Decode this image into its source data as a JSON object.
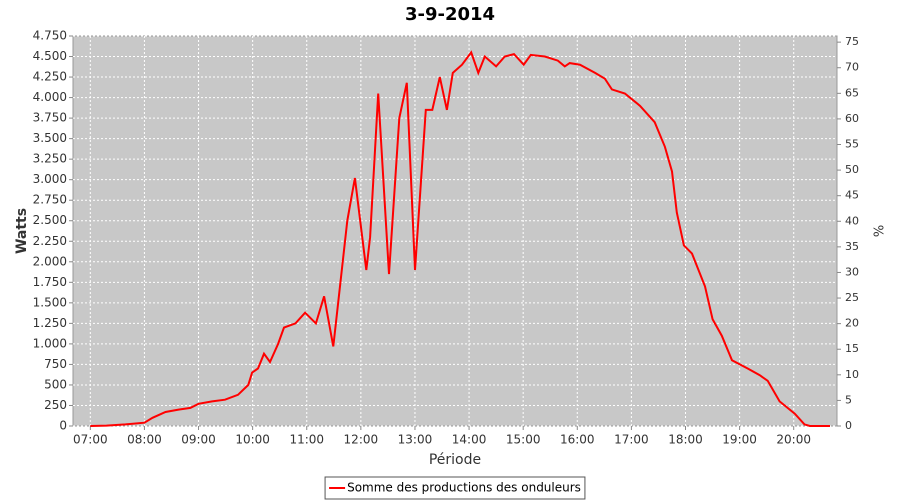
{
  "chart_data": {
    "type": "line",
    "title": "3-9-2014",
    "xlabel": "Période",
    "ylabel": "Watts",
    "y2label": "%",
    "xlim": [
      6.68,
      20.8
    ],
    "xticks": [
      {
        "value": 7,
        "label": "07:00"
      },
      {
        "value": 8,
        "label": "08:00"
      },
      {
        "value": 9,
        "label": "09:00"
      },
      {
        "value": 10,
        "label": "10:00"
      },
      {
        "value": 11,
        "label": "11:00"
      },
      {
        "value": 12,
        "label": "12:00"
      },
      {
        "value": 13,
        "label": "13:00"
      },
      {
        "value": 14,
        "label": "14:00"
      },
      {
        "value": 15,
        "label": "15:00"
      },
      {
        "value": 16,
        "label": "16:00"
      },
      {
        "value": 17,
        "label": "17:00"
      },
      {
        "value": 18,
        "label": "18:00"
      },
      {
        "value": 19,
        "label": "19:00"
      },
      {
        "value": 20,
        "label": "20:00"
      }
    ],
    "ylim": [
      0,
      4750
    ],
    "yticks": [
      0,
      250,
      500,
      750,
      {
        "value": 1000,
        "label": "1.000"
      },
      {
        "value": 1250,
        "label": "1.250"
      },
      {
        "value": 1500,
        "label": "1.500"
      },
      {
        "value": 1750,
        "label": "1.750"
      },
      {
        "value": 2000,
        "label": "2.000"
      },
      {
        "value": 2250,
        "label": "2.250"
      },
      {
        "value": 2500,
        "label": "2.500"
      },
      {
        "value": 2750,
        "label": "2.750"
      },
      {
        "value": 3000,
        "label": "3.000"
      },
      {
        "value": 3250,
        "label": "3.250"
      },
      {
        "value": 3500,
        "label": "3.500"
      },
      {
        "value": 3750,
        "label": "3.750"
      },
      {
        "value": 4000,
        "label": "4.000"
      },
      {
        "value": 4250,
        "label": "4.250"
      },
      {
        "value": 4500,
        "label": "4.500"
      },
      {
        "value": 4750,
        "label": "4.750"
      }
    ],
    "y2lim": [
      0,
      76.2
    ],
    "y2ticks": [
      0,
      5,
      10,
      15,
      20,
      25,
      30,
      35,
      40,
      45,
      50,
      55,
      60,
      65,
      70,
      75
    ],
    "grid": true,
    "legend": "bottom",
    "x": [
      7.0,
      7.3,
      7.65,
      8.0,
      8.15,
      8.39,
      8.63,
      8.85,
      9.0,
      9.25,
      9.49,
      9.73,
      9.92,
      9.99,
      10.1,
      10.21,
      10.32,
      10.47,
      10.58,
      10.79,
      10.97,
      11.17,
      11.32,
      11.49,
      11.75,
      11.89,
      12.1,
      12.17,
      12.32,
      12.52,
      12.71,
      12.85,
      13.0,
      13.2,
      13.32,
      13.46,
      13.59,
      13.7,
      13.87,
      14.04,
      14.17,
      14.29,
      14.5,
      14.66,
      14.83,
      15.01,
      15.14,
      15.4,
      15.64,
      15.77,
      15.86,
      16.05,
      16.33,
      16.51,
      16.64,
      16.88,
      17.16,
      17.43,
      17.62,
      17.75,
      17.84,
      17.97,
      18.12,
      18.36,
      18.5,
      18.67,
      18.86,
      19.15,
      19.37,
      19.52,
      19.74,
      20.02,
      20.2,
      20.3,
      20.67
    ],
    "series": [
      {
        "name": "Somme des productions des onduleurs",
        "color": "#ff0000",
        "values": [
          0,
          5,
          20,
          40,
          100,
          170,
          200,
          220,
          270,
          300,
          320,
          380,
          500,
          650,
          700,
          880,
          780,
          1000,
          1200,
          1250,
          1380,
          1250,
          1580,
          970,
          2500,
          3020,
          1900,
          2300,
          4050,
          1850,
          3750,
          4180,
          1900,
          3850,
          3850,
          4250,
          3850,
          4300,
          4400,
          4550,
          4300,
          4500,
          4380,
          4500,
          4530,
          4400,
          4520,
          4500,
          4450,
          4380,
          4420,
          4400,
          4300,
          4230,
          4100,
          4050,
          3900,
          3700,
          3400,
          3100,
          2600,
          2200,
          2100,
          1700,
          1300,
          1100,
          800,
          700,
          620,
          550,
          300,
          150,
          20,
          0,
          0
        ]
      }
    ]
  }
}
